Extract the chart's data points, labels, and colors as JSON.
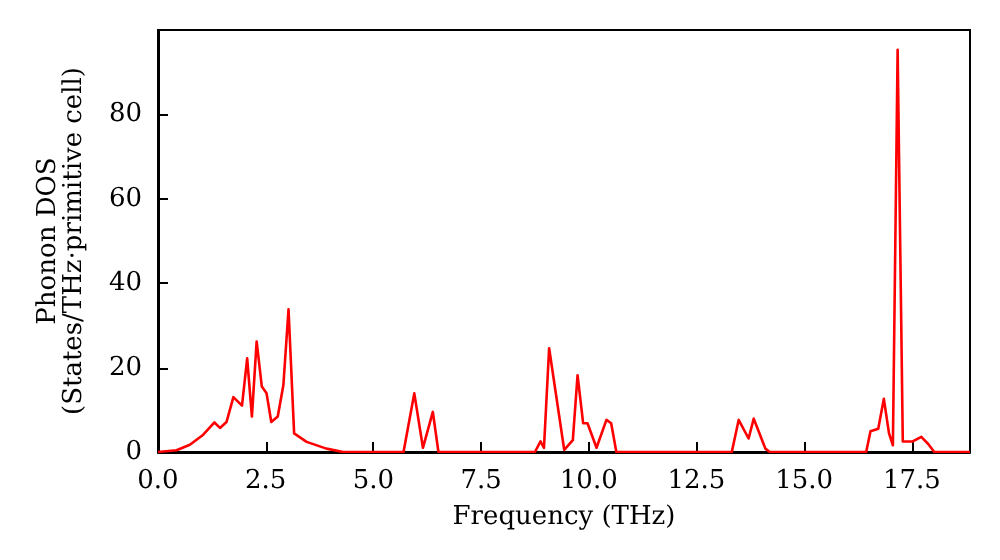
{
  "chart_data": {
    "type": "line",
    "xlabel": "Frequency (THz)",
    "ylabel": "Phonon DOS\n(States/THz·primitive cell)",
    "x": [
      0,
      0.43,
      0.74,
      1.05,
      1.31,
      1.44,
      1.59,
      1.75,
      1.95,
      2.07,
      2.18,
      2.29,
      2.41,
      2.52,
      2.63,
      2.78,
      2.91,
      3.03,
      3.16,
      3.45,
      3.91,
      4.3,
      5.7,
      5.95,
      6.15,
      6.38,
      6.51,
      8.75,
      8.88,
      8.96,
      9.08,
      9.43,
      9.63,
      9.74,
      9.87,
      9.97,
      10.18,
      10.41,
      10.52,
      10.64,
      13.32,
      13.48,
      13.71,
      13.83,
      14.1,
      14.2,
      16.44,
      16.54,
      16.72,
      16.85,
      16.97,
      17.06,
      17.17,
      17.29,
      17.52,
      17.72,
      17.88,
      18.02,
      18.85
    ],
    "series": [
      {
        "color": "#ff0000",
        "values": [
          0,
          0.4,
          1.7,
          4.1,
          7,
          5.7,
          7.1,
          13,
          11,
          22.2,
          8.4,
          26.2,
          15.5,
          13.9,
          7.1,
          8.4,
          15.8,
          33.8,
          4.4,
          2.4,
          0.8,
          0,
          0,
          13.9,
          1,
          9.5,
          0,
          0,
          2.5,
          1,
          24.6,
          0.5,
          2.8,
          18.2,
          6.8,
          6.8,
          1,
          7.6,
          6.8,
          0,
          0,
          7.6,
          3.2,
          7.9,
          0.8,
          0,
          0,
          4.9,
          5.5,
          12.6,
          4.4,
          1.6,
          95.3,
          2.5,
          2.5,
          3.6,
          1.9,
          0,
          0
        ]
      }
    ],
    "xlim": [
      0,
      18.85
    ],
    "ylim": [
      0,
      100
    ],
    "xticks": [
      {
        "value": 0,
        "label": "0.0"
      },
      {
        "value": 2.5,
        "label": "2.5"
      },
      {
        "value": 5,
        "label": "5.0"
      },
      {
        "value": 7.5,
        "label": "7.5"
      },
      {
        "value": 10,
        "label": "10.0"
      },
      {
        "value": 12.5,
        "label": "12.5"
      },
      {
        "value": 15,
        "label": "15.0"
      },
      {
        "value": 17.5,
        "label": "17.5"
      }
    ],
    "yticks": [
      0,
      20,
      40,
      60,
      80
    ],
    "grid": false,
    "marker": "none",
    "line_style": "solid"
  }
}
